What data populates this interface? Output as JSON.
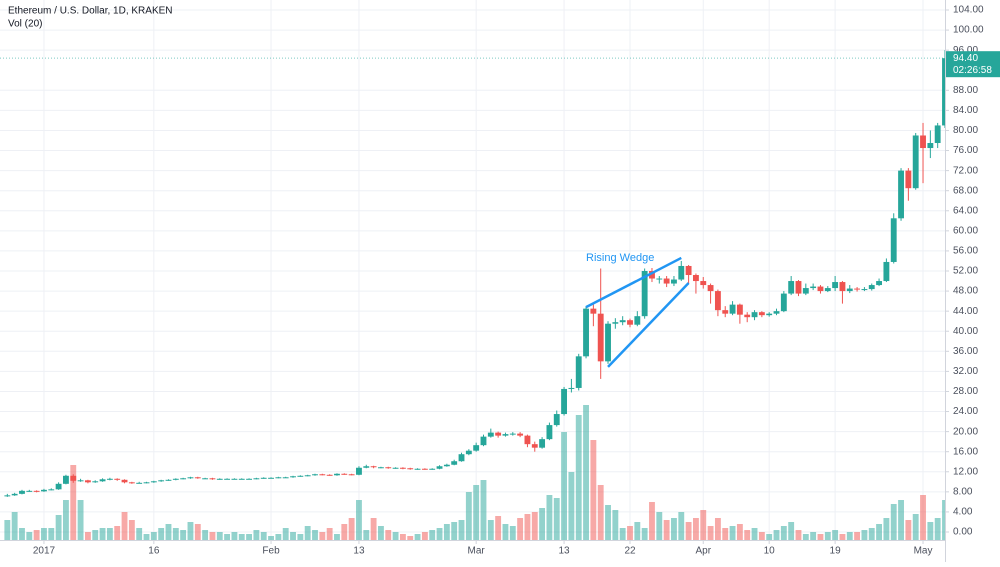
{
  "chart_data": {
    "type": "candlestick",
    "title": "Ethereum / U.S. Dollar, 1D, KRAKEN",
    "volume_title": "Vol (20)",
    "up_color": "#26a69a",
    "down_color": "#ef5350",
    "grid": true,
    "last_price_label": "94.40",
    "countdown": "02:26:58",
    "xlim": [
      "2016-12-26",
      "2017-05-04"
    ],
    "ylim": [
      0,
      104
    ],
    "yticks": [
      {
        "value": 0,
        "label": "0.00"
      },
      {
        "value": 4,
        "label": "4.00"
      },
      {
        "value": 8,
        "label": "8.00"
      },
      {
        "value": 12,
        "label": "12.00"
      },
      {
        "value": 16,
        "label": "16.00"
      },
      {
        "value": 20,
        "label": "20.00"
      },
      {
        "value": 24,
        "label": "24.00"
      },
      {
        "value": 28,
        "label": "28.00"
      },
      {
        "value": 32,
        "label": "32.00"
      },
      {
        "value": 36,
        "label": "36.00"
      },
      {
        "value": 40,
        "label": "40.00"
      },
      {
        "value": 44,
        "label": "44.00"
      },
      {
        "value": 48,
        "label": "48.00"
      },
      {
        "value": 52,
        "label": "52.00"
      },
      {
        "value": 56,
        "label": "56.00"
      },
      {
        "value": 60,
        "label": "60.00"
      },
      {
        "value": 64,
        "label": "64.00"
      },
      {
        "value": 68,
        "label": "68.00"
      },
      {
        "value": 72,
        "label": "72.00"
      },
      {
        "value": 76,
        "label": "76.00"
      },
      {
        "value": 80,
        "label": "80.00"
      },
      {
        "value": 84,
        "label": "84.00"
      },
      {
        "value": 88,
        "label": "88.00"
      },
      {
        "value": 96,
        "label": "96.00"
      },
      {
        "value": 100,
        "label": "100.00"
      },
      {
        "value": 104,
        "label": "104.00"
      }
    ],
    "xticks": [
      {
        "value": "2017-01-01",
        "label": "2017"
      },
      {
        "value": "2017-01-16",
        "label": "16"
      },
      {
        "value": "2017-02-01",
        "label": "Feb"
      },
      {
        "value": "2017-02-13",
        "label": "13"
      },
      {
        "value": "2017-03-01",
        "label": "Mar"
      },
      {
        "value": "2017-03-13",
        "label": "13"
      },
      {
        "value": "2017-03-22",
        "label": "22"
      },
      {
        "value": "2017-04-01",
        "label": "Apr"
      },
      {
        "value": "2017-04-10",
        "label": "10"
      },
      {
        "value": "2017-04-19",
        "label": "19"
      },
      {
        "value": "2017-05-01",
        "label": "May"
      }
    ],
    "x": [
      "2016-12-27",
      "2016-12-28",
      "2016-12-29",
      "2016-12-30",
      "2016-12-31",
      "2017-01-01",
      "2017-01-02",
      "2017-01-03",
      "2017-01-04",
      "2017-01-05",
      "2017-01-06",
      "2017-01-07",
      "2017-01-08",
      "2017-01-09",
      "2017-01-10",
      "2017-01-11",
      "2017-01-12",
      "2017-01-13",
      "2017-01-14",
      "2017-01-15",
      "2017-01-16",
      "2017-01-17",
      "2017-01-18",
      "2017-01-19",
      "2017-01-20",
      "2017-01-21",
      "2017-01-22",
      "2017-01-23",
      "2017-01-24",
      "2017-01-25",
      "2017-01-26",
      "2017-01-27",
      "2017-01-28",
      "2017-01-29",
      "2017-01-30",
      "2017-01-31",
      "2017-02-01",
      "2017-02-02",
      "2017-02-03",
      "2017-02-04",
      "2017-02-05",
      "2017-02-06",
      "2017-02-07",
      "2017-02-08",
      "2017-02-09",
      "2017-02-10",
      "2017-02-11",
      "2017-02-12",
      "2017-02-13",
      "2017-02-14",
      "2017-02-15",
      "2017-02-16",
      "2017-02-17",
      "2017-02-18",
      "2017-02-19",
      "2017-02-20",
      "2017-02-21",
      "2017-02-22",
      "2017-02-23",
      "2017-02-24",
      "2017-02-25",
      "2017-02-26",
      "2017-02-27",
      "2017-02-28",
      "2017-03-01",
      "2017-03-02",
      "2017-03-03",
      "2017-03-04",
      "2017-03-05",
      "2017-03-06",
      "2017-03-07",
      "2017-03-08",
      "2017-03-09",
      "2017-03-10",
      "2017-03-11",
      "2017-03-12",
      "2017-03-13",
      "2017-03-14",
      "2017-03-15",
      "2017-03-16",
      "2017-03-17",
      "2017-03-18",
      "2017-03-19",
      "2017-03-20",
      "2017-03-21",
      "2017-03-22",
      "2017-03-23",
      "2017-03-24",
      "2017-03-25",
      "2017-03-26",
      "2017-03-27",
      "2017-03-28",
      "2017-03-29",
      "2017-03-30",
      "2017-03-31",
      "2017-04-01",
      "2017-04-02",
      "2017-04-03",
      "2017-04-04",
      "2017-04-05",
      "2017-04-06",
      "2017-04-07",
      "2017-04-08",
      "2017-04-09",
      "2017-04-10",
      "2017-04-11",
      "2017-04-12",
      "2017-04-13",
      "2017-04-14",
      "2017-04-15",
      "2017-04-16",
      "2017-04-17",
      "2017-04-18",
      "2017-04-19",
      "2017-04-20",
      "2017-04-21",
      "2017-04-22",
      "2017-04-23",
      "2017-04-24",
      "2017-04-25",
      "2017-04-26",
      "2017-04-27",
      "2017-04-28",
      "2017-04-29",
      "2017-04-30",
      "2017-05-01",
      "2017-05-02",
      "2017-05-03",
      "2017-05-04"
    ],
    "open": [
      7.2,
      7.3,
      7.6,
      8.2,
      8.2,
      8.1,
      8.4,
      8.5,
      9.6,
      11.2,
      10.2,
      10.3,
      9.9,
      10.1,
      10.5,
      10.6,
      10.4,
      9.9,
      9.8,
      9.8,
      9.9,
      10.1,
      10.3,
      10.4,
      10.6,
      10.7,
      10.9,
      10.7,
      10.7,
      10.5,
      10.6,
      10.6,
      10.6,
      10.6,
      10.6,
      10.7,
      10.8,
      10.8,
      10.9,
      10.9,
      11.1,
      11.2,
      11.3,
      11.5,
      11.4,
      11.3,
      11.6,
      11.5,
      11.4,
      12.8,
      13.1,
      12.9,
      12.9,
      12.8,
      12.8,
      12.7,
      12.5,
      12.6,
      12.5,
      12.6,
      13.1,
      13.4,
      14.1,
      15.5,
      16.2,
      17.3,
      19.0,
      19.8,
      19.2,
      19.5,
      19.6,
      19.2,
      17.5,
      16.8,
      18.5,
      21.3,
      23.5,
      28.5,
      28.7,
      35.0,
      44.5,
      43.5,
      34.0,
      41.5,
      41.8,
      42.2,
      41.3,
      43.0,
      52.0,
      50.5,
      50.5,
      49.5,
      50.3,
      53.0,
      51.2,
      50.0,
      49.2,
      48.0,
      44.2,
      43.5,
      45.3,
      43.3,
      42.8,
      43.8,
      43.2,
      43.5,
      44.0,
      47.5,
      50.0,
      47.5,
      48.6,
      48.9,
      48.0,
      48.6,
      49.8,
      48.0,
      48.5,
      48.3,
      48.4,
      49.2,
      50.0,
      53.8,
      62.5,
      72.0,
      68.5,
      79.0,
      76.5,
      77.5,
      81.0
    ],
    "high": [
      7.6,
      7.8,
      8.4,
      8.4,
      8.3,
      8.6,
      8.7,
      9.9,
      11.4,
      11.5,
      10.6,
      10.4,
      10.3,
      10.7,
      10.8,
      10.7,
      10.5,
      10.0,
      10.0,
      10.0,
      10.2,
      10.4,
      10.5,
      10.7,
      10.8,
      11.0,
      11.0,
      10.8,
      10.8,
      10.7,
      10.7,
      10.7,
      10.7,
      10.7,
      10.8,
      10.9,
      10.9,
      11.0,
      11.0,
      11.2,
      11.3,
      11.4,
      11.6,
      11.6,
      11.5,
      11.7,
      11.7,
      11.6,
      13.1,
      13.4,
      13.2,
      13.0,
      13.0,
      12.9,
      12.9,
      12.8,
      12.7,
      12.7,
      12.7,
      13.3,
      13.6,
      14.4,
      15.8,
      16.5,
      17.8,
      19.4,
      20.6,
      20.0,
      19.8,
      19.9,
      19.9,
      19.4,
      18.0,
      18.9,
      21.8,
      24.2,
      28.9,
      30.5,
      35.5,
      45.0,
      45.5,
      52.5,
      42.0,
      42.6,
      43.0,
      42.5,
      44.0,
      52.5,
      52.6,
      51.0,
      51.0,
      51.0,
      54.0,
      53.2,
      51.5,
      50.8,
      49.5,
      48.3,
      45.0,
      46.0,
      45.5,
      43.8,
      44.2,
      44.0,
      43.8,
      44.5,
      48.0,
      51.0,
      50.2,
      49.5,
      49.5,
      49.2,
      49.0,
      51.0,
      50.0,
      49.2,
      48.8,
      48.8,
      49.5,
      50.5,
      54.5,
      63.5,
      72.5,
      72.5,
      79.5,
      81.5,
      80.0,
      81.5,
      96.0
    ],
    "low": [
      7.0,
      7.2,
      7.5,
      8.0,
      7.9,
      8.0,
      8.3,
      8.4,
      9.5,
      9.8,
      10.0,
      9.7,
      9.8,
      10.0,
      10.3,
      10.2,
      9.7,
      9.6,
      9.7,
      9.7,
      9.8,
      10.0,
      10.2,
      10.3,
      10.5,
      10.6,
      10.6,
      10.6,
      10.4,
      10.4,
      10.5,
      10.5,
      10.5,
      10.5,
      10.5,
      10.6,
      10.7,
      10.7,
      10.8,
      10.8,
      11.0,
      11.1,
      11.2,
      11.3,
      11.2,
      11.2,
      11.4,
      11.3,
      11.3,
      12.7,
      12.7,
      12.7,
      12.6,
      12.6,
      12.5,
      12.4,
      12.4,
      12.4,
      12.4,
      12.5,
      13.0,
      13.3,
      14.0,
      15.3,
      16.0,
      17.1,
      18.8,
      18.8,
      19.0,
      19.2,
      18.9,
      16.9,
      16.0,
      16.6,
      18.3,
      21.0,
      23.2,
      27.8,
      28.2,
      34.6,
      41.0,
      30.5,
      33.5,
      40.5,
      41.2,
      40.8,
      41.0,
      42.5,
      49.8,
      49.5,
      48.8,
      49.0,
      50.0,
      49.5,
      47.5,
      48.5,
      45.5,
      43.0,
      42.8,
      43.2,
      41.5,
      41.8,
      42.2,
      42.8,
      42.9,
      43.2,
      43.8,
      47.2,
      47.0,
      47.2,
      48.2,
      47.5,
      47.8,
      48.0,
      45.5,
      47.6,
      47.9,
      48.0,
      48.1,
      49.0,
      49.8,
      53.5,
      62.0,
      66.0,
      68.2,
      69.5,
      74.5,
      76.5,
      80.5
    ],
    "close": [
      7.3,
      7.6,
      8.2,
      8.2,
      8.1,
      8.4,
      8.5,
      9.6,
      11.2,
      10.2,
      10.3,
      9.9,
      10.1,
      10.5,
      10.6,
      10.4,
      9.9,
      9.8,
      9.8,
      9.9,
      10.1,
      10.3,
      10.4,
      10.6,
      10.7,
      10.9,
      10.7,
      10.7,
      10.5,
      10.6,
      10.6,
      10.6,
      10.6,
      10.6,
      10.7,
      10.8,
      10.8,
      10.9,
      10.9,
      11.1,
      11.2,
      11.3,
      11.5,
      11.4,
      11.3,
      11.6,
      11.5,
      11.4,
      12.8,
      13.1,
      12.9,
      12.9,
      12.8,
      12.8,
      12.7,
      12.5,
      12.6,
      12.5,
      12.6,
      13.1,
      13.4,
      14.1,
      15.5,
      16.2,
      17.3,
      19.0,
      19.8,
      19.2,
      19.5,
      19.6,
      19.2,
      17.5,
      16.8,
      18.5,
      21.3,
      23.5,
      28.5,
      28.7,
      35.0,
      44.5,
      43.5,
      34.0,
      41.5,
      41.8,
      42.2,
      41.3,
      43.0,
      52.0,
      50.5,
      50.5,
      49.5,
      50.3,
      53.0,
      51.2,
      50.0,
      49.2,
      48.0,
      44.2,
      43.5,
      45.3,
      43.3,
      42.8,
      43.8,
      43.2,
      43.5,
      44.0,
      47.5,
      50.0,
      47.5,
      48.6,
      48.9,
      48.0,
      48.6,
      49.8,
      48.0,
      48.5,
      48.3,
      48.4,
      49.2,
      50.0,
      53.8,
      62.5,
      72.0,
      68.5,
      79.0,
      76.5,
      77.5,
      81.0,
      94.4
    ],
    "volume": [
      20,
      28,
      12,
      8,
      10,
      12,
      12,
      25,
      40,
      75,
      40,
      8,
      10,
      12,
      12,
      14,
      28,
      20,
      12,
      6,
      8,
      12,
      16,
      12,
      10,
      18,
      16,
      10,
      8,
      8,
      6,
      8,
      6,
      6,
      10,
      8,
      4,
      6,
      12,
      8,
      6,
      14,
      10,
      8,
      12,
      6,
      16,
      22,
      40,
      10,
      22,
      14,
      10,
      8,
      6,
      4,
      6,
      8,
      10,
      12,
      16,
      18,
      20,
      48,
      55,
      60,
      20,
      24,
      16,
      14,
      22,
      26,
      28,
      32,
      45,
      42,
      108,
      68,
      125,
      135,
      100,
      55,
      35,
      30,
      12,
      14,
      18,
      12,
      38,
      28,
      20,
      22,
      28,
      18,
      22,
      30,
      14,
      22,
      12,
      14,
      16,
      10,
      12,
      8,
      6,
      10,
      14,
      18,
      10,
      6,
      8,
      6,
      8,
      10,
      6,
      8,
      8,
      10,
      12,
      16,
      22,
      36,
      40,
      20,
      26,
      45,
      18,
      22,
      40
    ],
    "annotation": {
      "text": "Rising Wedge",
      "color": "#2196f3",
      "lines": [
        {
          "x": [
            "2017-03-16",
            "2017-03-29"
          ],
          "y": [
            44.8,
            54.6
          ]
        },
        {
          "x": [
            "2017-03-19",
            "2017-03-30"
          ],
          "y": [
            32.9,
            49.6
          ]
        }
      ]
    }
  }
}
